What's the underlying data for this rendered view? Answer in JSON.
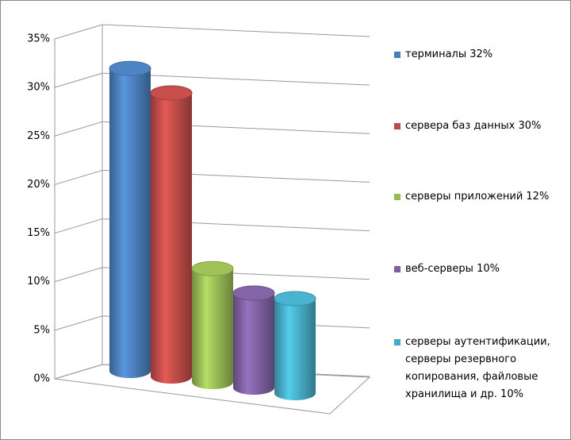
{
  "chart_data": {
    "type": "bar",
    "series": [
      {
        "name": "терминалы 32%",
        "color": "#4a7ebb",
        "values": [
          32
        ]
      },
      {
        "name": "сервера баз данных 30%",
        "color": "#be4b48",
        "values": [
          30
        ]
      },
      {
        "name": "серверы приложений 12%",
        "color": "#98b954",
        "values": [
          12
        ]
      },
      {
        "name": "веб-серверы 10%",
        "color": "#7d60a0",
        "values": [
          10
        ]
      },
      {
        "name": "серверы аутентификации, серверы резервного копирования, файловые хранилища и др. 10%",
        "color": "#46aac5",
        "values": [
          10
        ]
      }
    ],
    "ylim": [
      0,
      35
    ],
    "yticks": [
      {
        "value": 0,
        "label": "0%"
      },
      {
        "value": 5,
        "label": "5%"
      },
      {
        "value": 10,
        "label": "10%"
      },
      {
        "value": 15,
        "label": "15%"
      },
      {
        "value": 20,
        "label": "20%"
      },
      {
        "value": 25,
        "label": "25%"
      },
      {
        "value": 30,
        "label": "30%"
      },
      {
        "value": 35,
        "label": "35%"
      }
    ],
    "grid": true,
    "legend": "right"
  }
}
